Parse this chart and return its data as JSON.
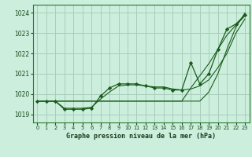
{
  "title": "Graphe pression niveau de la mer (hPa)",
  "bg_color": "#cceedd",
  "grid_color": "#aaccbb",
  "line_color": "#1a5c1a",
  "xlim": [
    -0.5,
    23.5
  ],
  "ylim": [
    1018.6,
    1024.4
  ],
  "yticks": [
    1019,
    1020,
    1021,
    1022,
    1023,
    1024
  ],
  "xticks": [
    0,
    1,
    2,
    3,
    4,
    5,
    6,
    7,
    8,
    9,
    10,
    11,
    12,
    13,
    14,
    15,
    16,
    17,
    18,
    19,
    20,
    21,
    22,
    23
  ],
  "line1": [
    1019.65,
    1019.65,
    1019.65,
    1019.65,
    1019.65,
    1019.65,
    1019.65,
    1019.65,
    1019.65,
    1019.65,
    1019.65,
    1019.65,
    1019.65,
    1019.65,
    1019.65,
    1019.65,
    1019.65,
    1019.65,
    1019.65,
    1020.1,
    1021.0,
    1022.2,
    1023.3,
    1024.0
  ],
  "line2": [
    1019.65,
    1019.65,
    1019.65,
    1019.65,
    1019.65,
    1019.65,
    1019.65,
    1019.65,
    1019.65,
    1019.65,
    1019.65,
    1019.65,
    1019.65,
    1019.65,
    1019.65,
    1019.65,
    1019.65,
    1020.3,
    1020.9,
    1021.5,
    1022.2,
    1022.9,
    1023.4,
    1023.85
  ],
  "line3": [
    1019.65,
    1019.65,
    1019.65,
    1019.3,
    1019.3,
    1019.3,
    1019.35,
    1019.75,
    1020.1,
    1020.4,
    1020.45,
    1020.45,
    1020.4,
    1020.35,
    1020.35,
    1020.25,
    1020.2,
    1020.25,
    1020.4,
    1020.7,
    1021.3,
    1022.0,
    1023.0,
    1023.7
  ],
  "line4_x": [
    0,
    1,
    2,
    3,
    4,
    5,
    6,
    7,
    8,
    9,
    10,
    11,
    12,
    13,
    14,
    15,
    16,
    17,
    18,
    19,
    20,
    21,
    22,
    23
  ],
  "line4_y": [
    1019.65,
    1019.65,
    1019.65,
    1019.25,
    1019.25,
    1019.25,
    1019.3,
    1019.9,
    1020.3,
    1020.5,
    1020.5,
    1020.5,
    1020.4,
    1020.3,
    1020.3,
    1020.2,
    1020.2,
    1021.55,
    1020.5,
    1021.0,
    1022.2,
    1023.2,
    1023.45,
    1023.9
  ]
}
